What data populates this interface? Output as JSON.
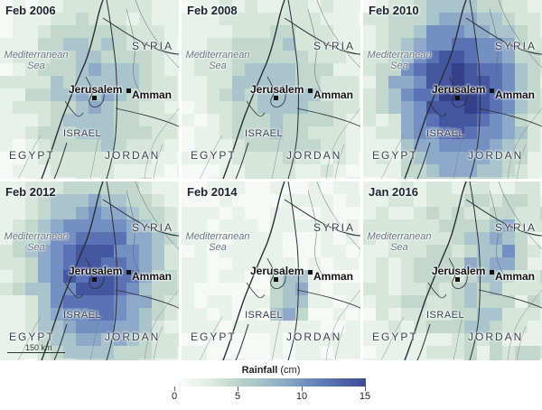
{
  "panels": [
    {
      "title": "Feb 2006"
    },
    {
      "title": "Feb 2008"
    },
    {
      "title": "Feb 2010"
    },
    {
      "title": "Feb 2012"
    },
    {
      "title": "Feb 2014"
    },
    {
      "title": "Jan 2016"
    }
  ],
  "labels": {
    "sea_line1": "Mediterranean",
    "sea_line2": "Sea",
    "syria": "SYRIA",
    "jerusalem": "Jerusalem",
    "amman": "Amman",
    "israel": "ISRAEL",
    "egypt": "EGYPT",
    "jordan": "JORDAN"
  },
  "scale_bar": "150 km",
  "legend": {
    "title": "Rainfall",
    "unit": "(cm)",
    "ticks": [
      "0",
      "5",
      "10",
      "15"
    ],
    "colors": [
      "#ffffff",
      "#dfece2",
      "#b8d2c8",
      "#8fb0c6",
      "#6380b8",
      "#3c4a96"
    ]
  }
}
